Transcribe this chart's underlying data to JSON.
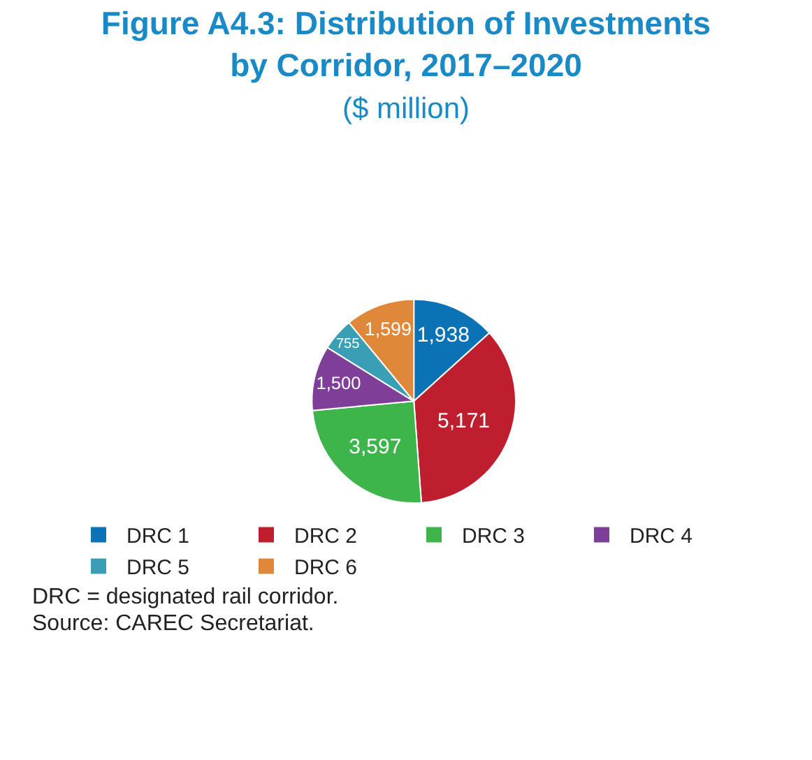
{
  "chart_data": {
    "type": "pie",
    "title": "Figure A4.3: Distribution of Investments by Corridor, 2017–2020",
    "subtitle": "($ million)",
    "categories": [
      "DRC 1",
      "DRC 2",
      "DRC 3",
      "DRC 4",
      "DRC 5",
      "DRC 6"
    ],
    "values": [
      1938,
      5171,
      3597,
      1500,
      755,
      1599
    ],
    "value_labels": [
      "1,938",
      "5,171",
      "3,597",
      "1,500",
      "755",
      "1,599"
    ],
    "colors": [
      "#0a72b5",
      "#be1e2d",
      "#3db54a",
      "#7f3f98",
      "#3a9fb5",
      "#e0883a"
    ],
    "legend": "bottom",
    "annotations": [
      "DRC = designated rail corridor.",
      "Source: CAREC Secretariat."
    ]
  }
}
